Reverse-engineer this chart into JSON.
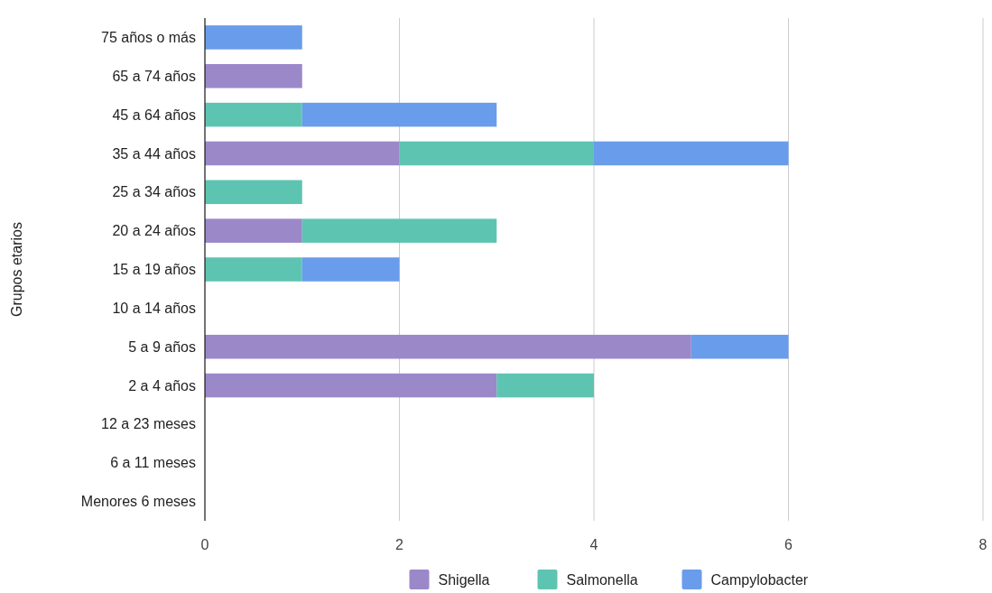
{
  "chart_data": {
    "type": "bar",
    "orientation": "horizontal",
    "stacked": true,
    "ylabel": "Grupos etarios",
    "categories": [
      "75 años o más",
      "65 a 74 años",
      "45 a 64 años",
      "35 a 44 años",
      "25 a 34 años",
      "20 a 24 años",
      "15 a 19 años",
      "10 a 14 años",
      "5 a 9 años",
      "2 a 4 años",
      "12 a 23 meses",
      "6 a 11 meses",
      "Menores 6 meses"
    ],
    "series": [
      {
        "name": "Shigella",
        "color": "#9b88c9",
        "values": [
          0,
          1,
          0,
          2,
          0,
          1,
          0,
          0,
          5,
          3,
          0,
          0,
          0
        ]
      },
      {
        "name": "Salmonella",
        "color": "#5ec4b2",
        "values": [
          0,
          0,
          1,
          2,
          1,
          2,
          1,
          0,
          0,
          1,
          0,
          0,
          0
        ]
      },
      {
        "name": "Campylobacter",
        "color": "#699ceb",
        "values": [
          1,
          0,
          2,
          2,
          0,
          0,
          1,
          0,
          1,
          0,
          0,
          0,
          0
        ]
      }
    ],
    "xlim": [
      0,
      8
    ],
    "xticks": [
      0,
      2,
      4,
      6,
      8
    ],
    "grid": "x",
    "legend": "bottom"
  }
}
